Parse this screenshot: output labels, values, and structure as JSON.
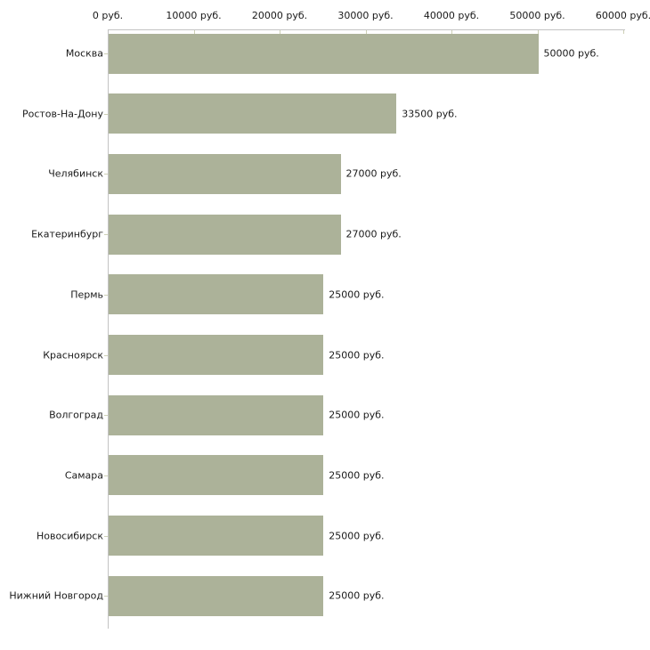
{
  "chart_data": {
    "type": "bar",
    "orientation": "horizontal",
    "title": "",
    "xlabel": "",
    "ylabel": "",
    "unit": "руб.",
    "xlim": [
      0,
      60000
    ],
    "x_ticks": [
      0,
      10000,
      20000,
      30000,
      40000,
      50000,
      60000
    ],
    "x_tick_labels": [
      "0 руб.",
      "10000 руб.",
      "20000 руб.",
      "30000 руб.",
      "40000 руб.",
      "50000 руб.",
      "60000 руб."
    ],
    "categories": [
      "Москва",
      "Ростов-На-Дону",
      "Челябинск",
      "Екатеринбург",
      "Пермь",
      "Красноярск",
      "Волгоград",
      "Самара",
      "Новосибирск",
      "Нижний Новгород"
    ],
    "values": [
      50000,
      33500,
      27000,
      27000,
      25000,
      25000,
      25000,
      25000,
      25000,
      25000
    ],
    "value_labels": [
      "50000 руб.",
      "33500 руб.",
      "27000 руб.",
      "27000 руб.",
      "25000 руб.",
      "25000 руб.",
      "25000 руб.",
      "25000 руб.",
      "25000 руб.",
      "25000 руб."
    ],
    "grid": false,
    "legend_visible": false,
    "axis_ticks_position": "top",
    "colors": {
      "bar": "#acb299",
      "axis_line": "#c3c3c3",
      "tick_mark": "#cdd0b6",
      "text": "#1a1a1a",
      "background": "#ffffff"
    }
  }
}
